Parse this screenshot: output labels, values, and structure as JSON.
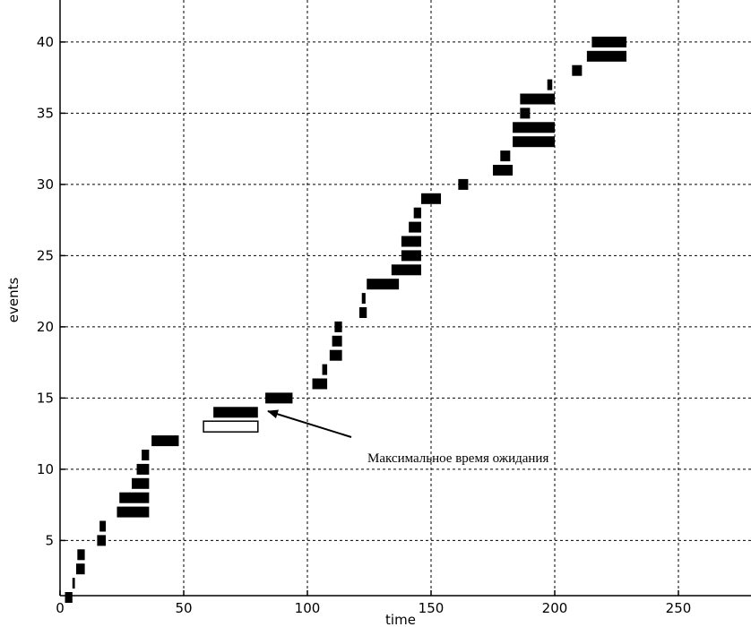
{
  "chart_data": {
    "type": "bar",
    "xlabel": "time",
    "ylabel": "events",
    "xlim": [
      0,
      280
    ],
    "ylim": [
      1,
      41
    ],
    "x_ticks": [
      0,
      50,
      100,
      150,
      200,
      250
    ],
    "y_ticks": [
      5,
      10,
      15,
      20,
      25,
      30,
      35,
      40
    ],
    "grid": true,
    "annotation": {
      "text": "Максимальное время ожидания",
      "points_to_event": 13
    },
    "events": [
      {
        "event": 1,
        "start": 2,
        "end": 5,
        "hollow": false
      },
      {
        "event": 2,
        "start": 5,
        "end": 6,
        "hollow": false
      },
      {
        "event": 3,
        "start": 6.5,
        "end": 10,
        "hollow": false
      },
      {
        "event": 4,
        "start": 7,
        "end": 10,
        "hollow": false
      },
      {
        "event": 5,
        "start": 15,
        "end": 18.5,
        "hollow": false
      },
      {
        "event": 6,
        "start": 16,
        "end": 18.5,
        "hollow": false
      },
      {
        "event": 7,
        "start": 23,
        "end": 36,
        "hollow": false
      },
      {
        "event": 8,
        "start": 24,
        "end": 36,
        "hollow": false
      },
      {
        "event": 9,
        "start": 29,
        "end": 36,
        "hollow": false
      },
      {
        "event": 10,
        "start": 31,
        "end": 36,
        "hollow": false
      },
      {
        "event": 11,
        "start": 33,
        "end": 36,
        "hollow": false
      },
      {
        "event": 12,
        "start": 37,
        "end": 48,
        "hollow": false
      },
      {
        "event": 13,
        "start": 58,
        "end": 80,
        "hollow": true
      },
      {
        "event": 14,
        "start": 62,
        "end": 80,
        "hollow": false
      },
      {
        "event": 15,
        "start": 83,
        "end": 94,
        "hollow": false
      },
      {
        "event": 16,
        "start": 102,
        "end": 108,
        "hollow": false
      },
      {
        "event": 17,
        "start": 106,
        "end": 108,
        "hollow": false
      },
      {
        "event": 18,
        "start": 109,
        "end": 114,
        "hollow": false
      },
      {
        "event": 19,
        "start": 110,
        "end": 114,
        "hollow": false
      },
      {
        "event": 20,
        "start": 111,
        "end": 114,
        "hollow": false
      },
      {
        "event": 21,
        "start": 121,
        "end": 124,
        "hollow": false
      },
      {
        "event": 22,
        "start": 122,
        "end": 123.5,
        "hollow": false
      },
      {
        "event": 23,
        "start": 124,
        "end": 137,
        "hollow": false
      },
      {
        "event": 24,
        "start": 134,
        "end": 146,
        "hollow": false
      },
      {
        "event": 25,
        "start": 138,
        "end": 146,
        "hollow": false
      },
      {
        "event": 26,
        "start": 138,
        "end": 146,
        "hollow": false
      },
      {
        "event": 27,
        "start": 141,
        "end": 146,
        "hollow": false
      },
      {
        "event": 28,
        "start": 143,
        "end": 146,
        "hollow": false
      },
      {
        "event": 29,
        "start": 146,
        "end": 154,
        "hollow": false
      },
      {
        "event": 30,
        "start": 161,
        "end": 165,
        "hollow": false
      },
      {
        "event": 31,
        "start": 175,
        "end": 183,
        "hollow": false
      },
      {
        "event": 32,
        "start": 178,
        "end": 182,
        "hollow": false
      },
      {
        "event": 33,
        "start": 183,
        "end": 200,
        "hollow": false
      },
      {
        "event": 34,
        "start": 183,
        "end": 200,
        "hollow": false
      },
      {
        "event": 35,
        "start": 186,
        "end": 190,
        "hollow": false
      },
      {
        "event": 36,
        "start": 186,
        "end": 200,
        "hollow": false
      },
      {
        "event": 37,
        "start": 197,
        "end": 199,
        "hollow": false
      },
      {
        "event": 38,
        "start": 207,
        "end": 211,
        "hollow": false
      },
      {
        "event": 39,
        "start": 213,
        "end": 229,
        "hollow": false
      },
      {
        "event": 40,
        "start": 215,
        "end": 229,
        "hollow": false
      }
    ]
  }
}
